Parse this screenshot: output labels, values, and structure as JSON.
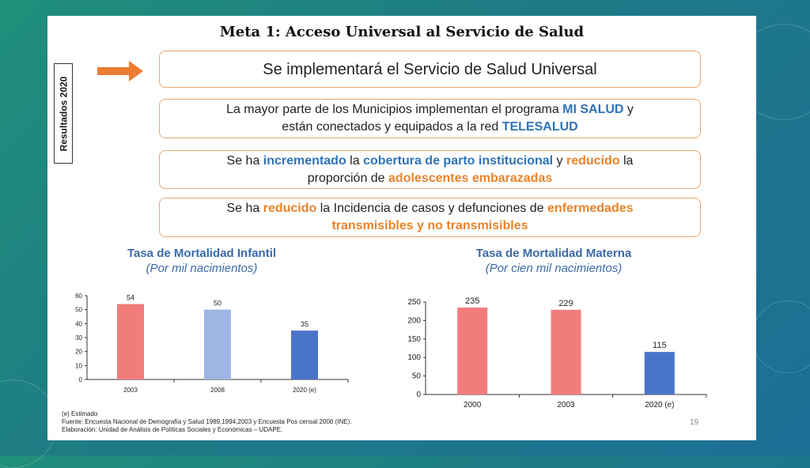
{
  "slide": {
    "title": "Meta 1: Acceso Universal al Servicio de Salud",
    "side_label": "Resultados 2020",
    "box1": "Se implementará el Servicio de Salud Universal",
    "box2": {
      "t1": "La mayor parte de los Municipios implementan el programa ",
      "h1": "MI SALUD",
      "t2": " y",
      "t3": "están conectados y equipados a la red ",
      "h2": "TELESALUD"
    },
    "box3": {
      "t1": "Se ha ",
      "h1": "incrementado",
      "t2": " la ",
      "h2": "cobertura de parto institucional",
      "t3": " y ",
      "h3": "reducido",
      "t4": " la",
      "t5": "proporción de ",
      "h4": "adolescentes embarazadas"
    },
    "box4": {
      "t1": "Se ha ",
      "h1": "reducido",
      "t2": " la Incidencia de casos y defunciones de ",
      "h2": "enfermedades",
      "h3": "transmisibles y no transmisibles"
    },
    "footer": {
      "line1": "(e) Estimado",
      "line2": "Fuente: Encuesta Nacional de Demografía y Salud 1989,1994,2003 y Encuesta Pos censal 2000 (INE).",
      "line3": "Elaboración: Unidad de Análisis de Políticas Sociales y Económicas – UDAPE."
    },
    "page_number": "19"
  },
  "colors": {
    "accent_blue": "#2e73b8",
    "accent_orange": "#e8832a",
    "box_border": "#e5a673",
    "bar_red": "#f27c7c",
    "bar_light_blue": "#9db6e3",
    "bar_blue": "#4a74c8"
  },
  "chart_data": [
    {
      "type": "bar",
      "title": "Tasa de Mortalidad Infantil",
      "subtitle": "(Por mil nacimientos)",
      "categories": [
        "2003",
        "2008",
        "2020 (e)"
      ],
      "values": [
        54,
        50,
        35
      ],
      "value_labels": [
        "54",
        "50",
        "35"
      ],
      "bar_colors": [
        "#f27c7c",
        "#9db6e3",
        "#4a74c8"
      ],
      "ylim": [
        0,
        60
      ],
      "yticks": [
        0,
        10,
        20,
        30,
        40,
        50,
        60
      ],
      "grid": false
    },
    {
      "type": "bar",
      "title": "Tasa de Mortalidad Materna",
      "subtitle": "(Por cien mil nacimientos)",
      "categories": [
        "2000",
        "2003",
        "2020 (e)"
      ],
      "values": [
        235,
        229,
        115
      ],
      "value_labels": [
        "235",
        "229",
        "115"
      ],
      "bar_colors": [
        "#f27c7c",
        "#f27c7c",
        "#4a74c8"
      ],
      "ylim": [
        0,
        250
      ],
      "yticks": [
        0,
        50,
        100,
        150,
        200,
        250
      ],
      "grid": false
    }
  ]
}
